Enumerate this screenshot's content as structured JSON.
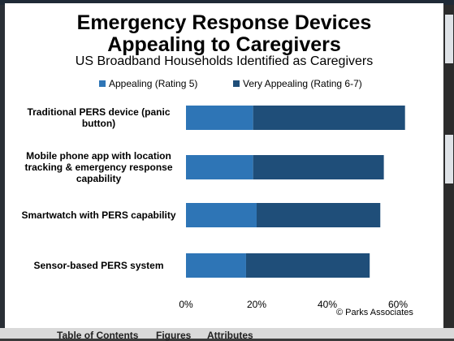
{
  "chart_data": {
    "type": "bar",
    "orientation": "horizontal",
    "stacked": true,
    "title_line1": "Emergency Response Devices",
    "title_line2": "Appealing to Caregivers",
    "subtitle": "US Broadband Households Identified as Caregivers",
    "categories": [
      [
        "Traditional PERS device (panic",
        "button)"
      ],
      [
        "Mobile phone app with location",
        "tracking & emergency response",
        "capability"
      ],
      [
        "Smartwatch with PERS capability"
      ],
      [
        "Sensor-based PERS system"
      ]
    ],
    "series": [
      {
        "name": "Appealing (Rating 5)",
        "color": "#2e75b6",
        "values": [
          19,
          19,
          20,
          17
        ]
      },
      {
        "name": "Very Appealing (Rating 6-7)",
        "color": "#1f4e79",
        "values": [
          43,
          37,
          35,
          35
        ]
      }
    ],
    "xlim": [
      0,
      60
    ],
    "ticks": [
      0,
      20,
      40,
      60
    ],
    "tick_labels": [
      "0%",
      "20%",
      "40%",
      "60%"
    ],
    "legend_position": "top",
    "grid": false,
    "source": "© Parks Associates"
  },
  "background": {
    "tabs": [
      "Table of Contents",
      "Figures",
      "Attributes"
    ]
  }
}
